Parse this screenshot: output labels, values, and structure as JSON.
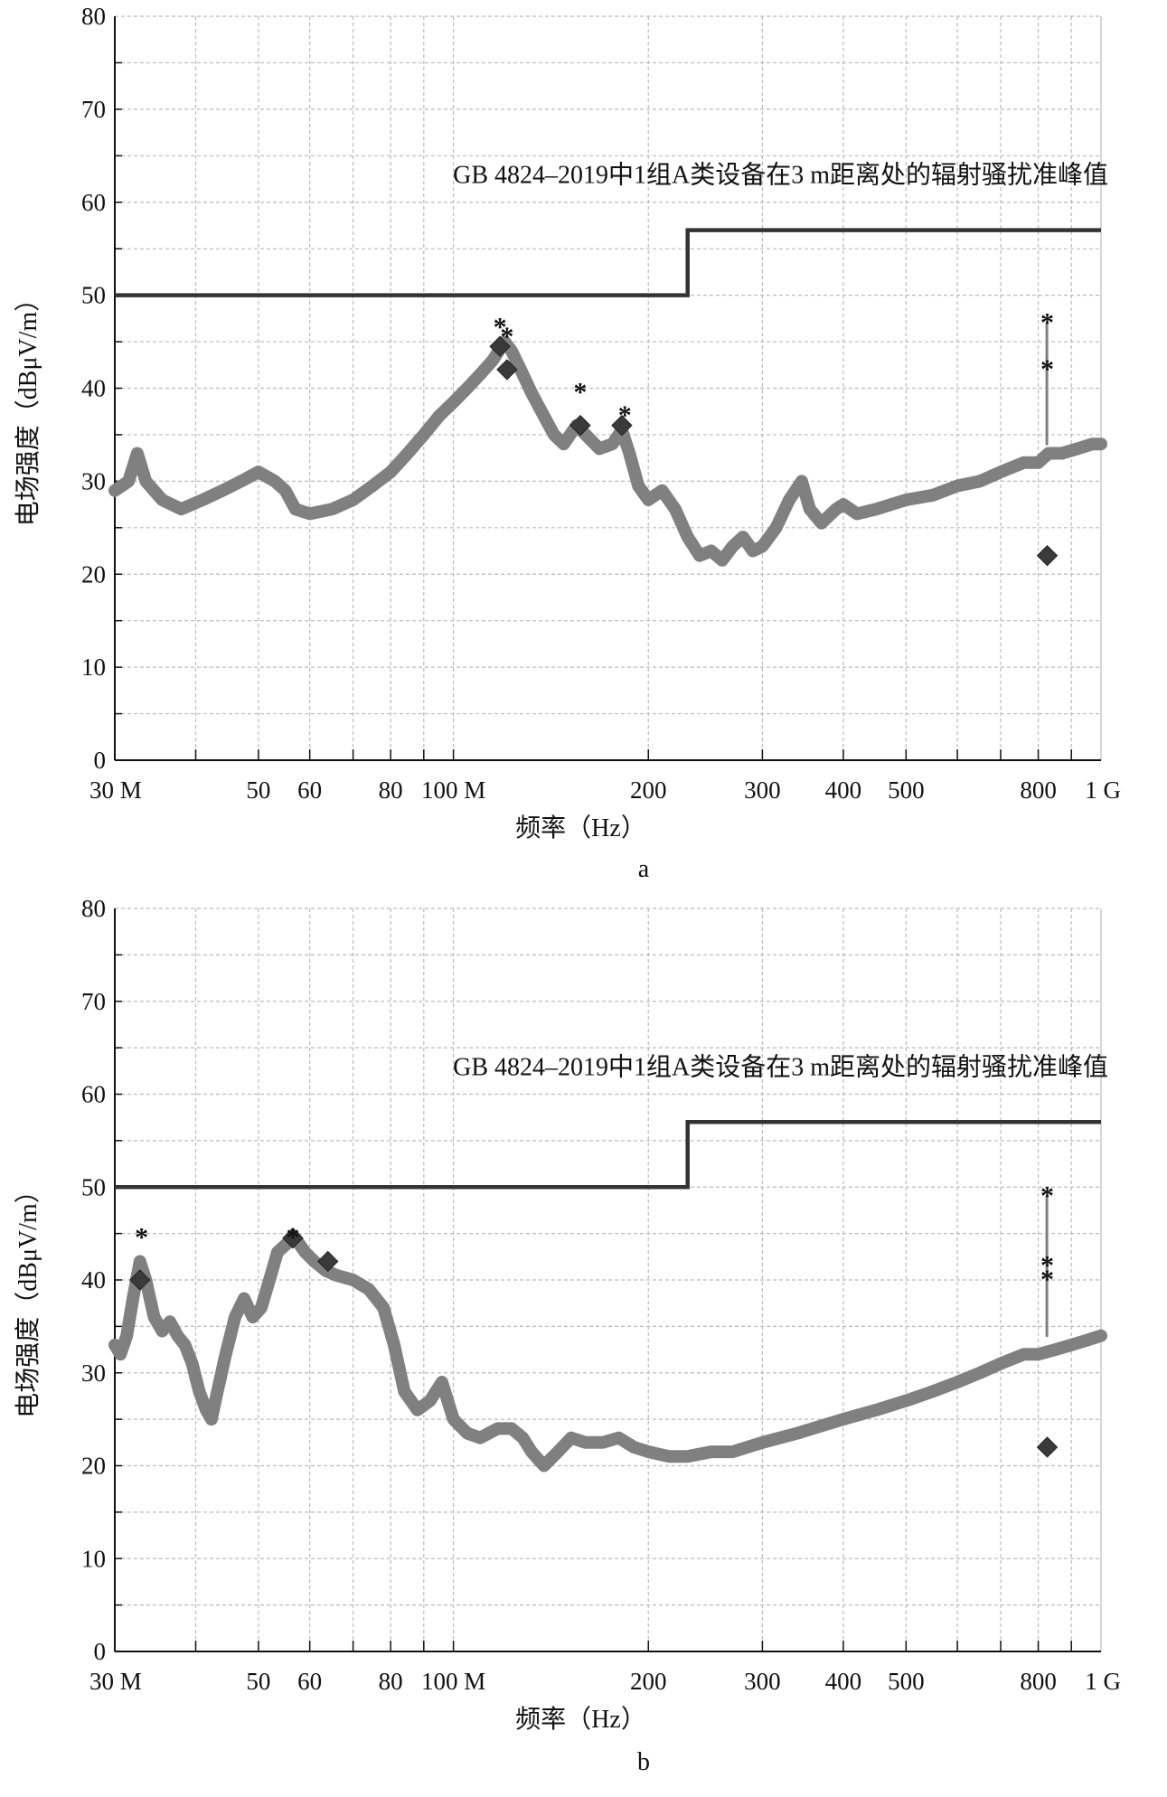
{
  "chart_data": [
    {
      "type": "line",
      "panel_label": "a",
      "xlabel": "频率（Hz）",
      "ylabel": "电场强度（dBμV/m）",
      "xscale": "log",
      "xlim_hz": [
        30000000,
        1000000000
      ],
      "ylim": [
        0,
        80
      ],
      "grid": true,
      "x_tick_labels": [
        {
          "hz": 30000000,
          "label": "30 M"
        },
        {
          "hz": 50000000,
          "label": "50"
        },
        {
          "hz": 60000000,
          "label": "60"
        },
        {
          "hz": 80000000,
          "label": "80"
        },
        {
          "hz": 100000000,
          "label": "100 M"
        },
        {
          "hz": 200000000,
          "label": "200"
        },
        {
          "hz": 300000000,
          "label": "300"
        },
        {
          "hz": 400000000,
          "label": "400"
        },
        {
          "hz": 500000000,
          "label": "500"
        },
        {
          "hz": 800000000,
          "label": "800"
        },
        {
          "hz": 1000000000,
          "label": "1 G"
        }
      ],
      "y_tick_labels": [
        "0",
        "10",
        "20",
        "30",
        "40",
        "50",
        "60",
        "70",
        "80"
      ],
      "limit_line": {
        "label": "GB 4824–2019中1组A类设备在3 m距离处的辐射骚扰准峰值",
        "segments": [
          {
            "from_hz": 30000000,
            "to_hz": 230000000,
            "value": 50
          },
          {
            "from_hz": 230000000,
            "to_hz": 1000000000,
            "value": 57
          }
        ]
      },
      "series": [
        {
          "points": [
            [
              30000000,
              29
            ],
            [
              31500000,
              30
            ],
            [
              32500000,
              33
            ],
            [
              33500000,
              30
            ],
            [
              35500000,
              28
            ],
            [
              38000000,
              27
            ],
            [
              41000000,
              28
            ],
            [
              44000000,
              29
            ],
            [
              47000000,
              30
            ],
            [
              50000000,
              31
            ],
            [
              53000000,
              30
            ],
            [
              55000000,
              29
            ],
            [
              57000000,
              27
            ],
            [
              60000000,
              26.5
            ],
            [
              65000000,
              27
            ],
            [
              70000000,
              28
            ],
            [
              75000000,
              29.5
            ],
            [
              80000000,
              31
            ],
            [
              85000000,
              33
            ],
            [
              90000000,
              35
            ],
            [
              95000000,
              37
            ],
            [
              100000000,
              38.5
            ],
            [
              105000000,
              40
            ],
            [
              110000000,
              41.5
            ],
            [
              115000000,
              43
            ],
            [
              120000000,
              45
            ],
            [
              123000000,
              44
            ],
            [
              127000000,
              42
            ],
            [
              132000000,
              39.5
            ],
            [
              138000000,
              37
            ],
            [
              143000000,
              35
            ],
            [
              148000000,
              34
            ],
            [
              155000000,
              36
            ],
            [
              160000000,
              35
            ],
            [
              168000000,
              33.5
            ],
            [
              176000000,
              34
            ],
            [
              182000000,
              35.5
            ],
            [
              187000000,
              33
            ],
            [
              193000000,
              29.5
            ],
            [
              200000000,
              28
            ],
            [
              210000000,
              29
            ],
            [
              220000000,
              27
            ],
            [
              230000000,
              24
            ],
            [
              240000000,
              22
            ],
            [
              250000000,
              22.5
            ],
            [
              260000000,
              21.5
            ],
            [
              270000000,
              23
            ],
            [
              280000000,
              24
            ],
            [
              290000000,
              22.5
            ],
            [
              300000000,
              23
            ],
            [
              315000000,
              25
            ],
            [
              330000000,
              28
            ],
            [
              345000000,
              30
            ],
            [
              355000000,
              27
            ],
            [
              370000000,
              25.5
            ],
            [
              390000000,
              27
            ],
            [
              400000000,
              27.5
            ],
            [
              420000000,
              26.5
            ],
            [
              450000000,
              27
            ],
            [
              500000000,
              28
            ],
            [
              550000000,
              28.5
            ],
            [
              600000000,
              29.5
            ],
            [
              650000000,
              30
            ],
            [
              700000000,
              31
            ],
            [
              760000000,
              32
            ],
            [
              800000000,
              32
            ],
            [
              830000000,
              33
            ],
            [
              870000000,
              33
            ],
            [
              920000000,
              33.5
            ],
            [
              970000000,
              34
            ],
            [
              1000000000,
              34
            ]
          ]
        },
        {
          "name": "spike",
          "points": [
            [
              825000000,
              34
            ],
            [
              825000000,
              47
            ]
          ]
        }
      ],
      "peak_markers": [
        {
          "hz": 118000000,
          "value": 47
        },
        {
          "hz": 121000000,
          "value": 46
        },
        {
          "hz": 157000000,
          "value": 40
        },
        {
          "hz": 184000000,
          "value": 37.5
        },
        {
          "hz": 826000000,
          "value": 47.5
        },
        {
          "hz": 826000000,
          "value": 42.5
        }
      ],
      "quasi_peak_markers": [
        {
          "hz": 118000000,
          "value": 44.5
        },
        {
          "hz": 121000000,
          "value": 42
        },
        {
          "hz": 157000000,
          "value": 36
        },
        {
          "hz": 182000000,
          "value": 36
        },
        {
          "hz": 826000000,
          "value": 22
        }
      ]
    },
    {
      "type": "line",
      "panel_label": "b",
      "xlabel": "频率（Hz）",
      "ylabel": "电场强度（dBμV/m）",
      "xscale": "log",
      "xlim_hz": [
        30000000,
        1000000000
      ],
      "ylim": [
        0,
        80
      ],
      "grid": true,
      "x_tick_labels": [
        {
          "hz": 30000000,
          "label": "30 M"
        },
        {
          "hz": 50000000,
          "label": "50"
        },
        {
          "hz": 60000000,
          "label": "60"
        },
        {
          "hz": 80000000,
          "label": "80"
        },
        {
          "hz": 100000000,
          "label": "100 M"
        },
        {
          "hz": 200000000,
          "label": "200"
        },
        {
          "hz": 300000000,
          "label": "300"
        },
        {
          "hz": 400000000,
          "label": "400"
        },
        {
          "hz": 500000000,
          "label": "500"
        },
        {
          "hz": 800000000,
          "label": "800"
        },
        {
          "hz": 1000000000,
          "label": "1 G"
        }
      ],
      "y_tick_labels": [
        "0",
        "10",
        "20",
        "30",
        "40",
        "50",
        "60",
        "70",
        "80"
      ],
      "limit_line": {
        "label": "GB 4824–2019中1组A类设备在3 m距离处的辐射骚扰准峰值",
        "segments": [
          {
            "from_hz": 30000000,
            "to_hz": 230000000,
            "value": 50
          },
          {
            "from_hz": 230000000,
            "to_hz": 1000000000,
            "value": 57
          }
        ]
      },
      "series": [
        {
          "points": [
            [
              30000000,
              33
            ],
            [
              30600000,
              32
            ],
            [
              31300000,
              34
            ],
            [
              32000000,
              38
            ],
            [
              32800000,
              42
            ],
            [
              33500000,
              40
            ],
            [
              34500000,
              36
            ],
            [
              35500000,
              34.5
            ],
            [
              36500000,
              35.5
            ],
            [
              37500000,
              34
            ],
            [
              38500000,
              33
            ],
            [
              39500000,
              31
            ],
            [
              40500000,
              28
            ],
            [
              41500000,
              26
            ],
            [
              42300000,
              25
            ],
            [
              43200000,
              28
            ],
            [
              44500000,
              32
            ],
            [
              46000000,
              36
            ],
            [
              47500000,
              38
            ],
            [
              49000000,
              36
            ],
            [
              50500000,
              37
            ],
            [
              52000000,
              40
            ],
            [
              53500000,
              43
            ],
            [
              55500000,
              44
            ],
            [
              57000000,
              44.5
            ],
            [
              59000000,
              43
            ],
            [
              61000000,
              42
            ],
            [
              63500000,
              41
            ],
            [
              66000000,
              40.5
            ],
            [
              70000000,
              40
            ],
            [
              74000000,
              39
            ],
            [
              78000000,
              37
            ],
            [
              81000000,
              33
            ],
            [
              84000000,
              28
            ],
            [
              88000000,
              26
            ],
            [
              92000000,
              27
            ],
            [
              96000000,
              29
            ],
            [
              100000000,
              25
            ],
            [
              105000000,
              23.5
            ],
            [
              110000000,
              23
            ],
            [
              117000000,
              24
            ],
            [
              123000000,
              24
            ],
            [
              128000000,
              23
            ],
            [
              132000000,
              21.5
            ],
            [
              138000000,
              20
            ],
            [
              145000000,
              21.5
            ],
            [
              152000000,
              23
            ],
            [
              160000000,
              22.5
            ],
            [
              170000000,
              22.5
            ],
            [
              180000000,
              23
            ],
            [
              190000000,
              22
            ],
            [
              200000000,
              21.5
            ],
            [
              215000000,
              21
            ],
            [
              230000000,
              21
            ],
            [
              250000000,
              21.5
            ],
            [
              270000000,
              21.5
            ],
            [
              300000000,
              22.5
            ],
            [
              340000000,
              23.5
            ],
            [
              400000000,
              25
            ],
            [
              450000000,
              26
            ],
            [
              500000000,
              27
            ],
            [
              550000000,
              28
            ],
            [
              600000000,
              29
            ],
            [
              650000000,
              30
            ],
            [
              700000000,
              31
            ],
            [
              760000000,
              32
            ],
            [
              800000000,
              32
            ],
            [
              850000000,
              32.5
            ],
            [
              900000000,
              33
            ],
            [
              950000000,
              33.5
            ],
            [
              1000000000,
              34
            ]
          ]
        },
        {
          "name": "spike",
          "points": [
            [
              825000000,
              34
            ],
            [
              825000000,
              49
            ]
          ]
        }
      ],
      "peak_markers": [
        {
          "hz": 33000000,
          "value": 45
        },
        {
          "hz": 56500000,
          "value": 45
        },
        {
          "hz": 826000000,
          "value": 49.5
        },
        {
          "hz": 826000000,
          "value": 42
        },
        {
          "hz": 826000000,
          "value": 40.5
        }
      ],
      "quasi_peak_markers": [
        {
          "hz": 32800000,
          "value": 40
        },
        {
          "hz": 56500000,
          "value": 44.5
        },
        {
          "hz": 64000000,
          "value": 42
        },
        {
          "hz": 826000000,
          "value": 22
        }
      ]
    }
  ],
  "colors": {
    "signal": "#808080",
    "limit": "#333333",
    "marker": "#3a3a3a",
    "grid": "#bbbbbb",
    "axis": "#111111"
  }
}
